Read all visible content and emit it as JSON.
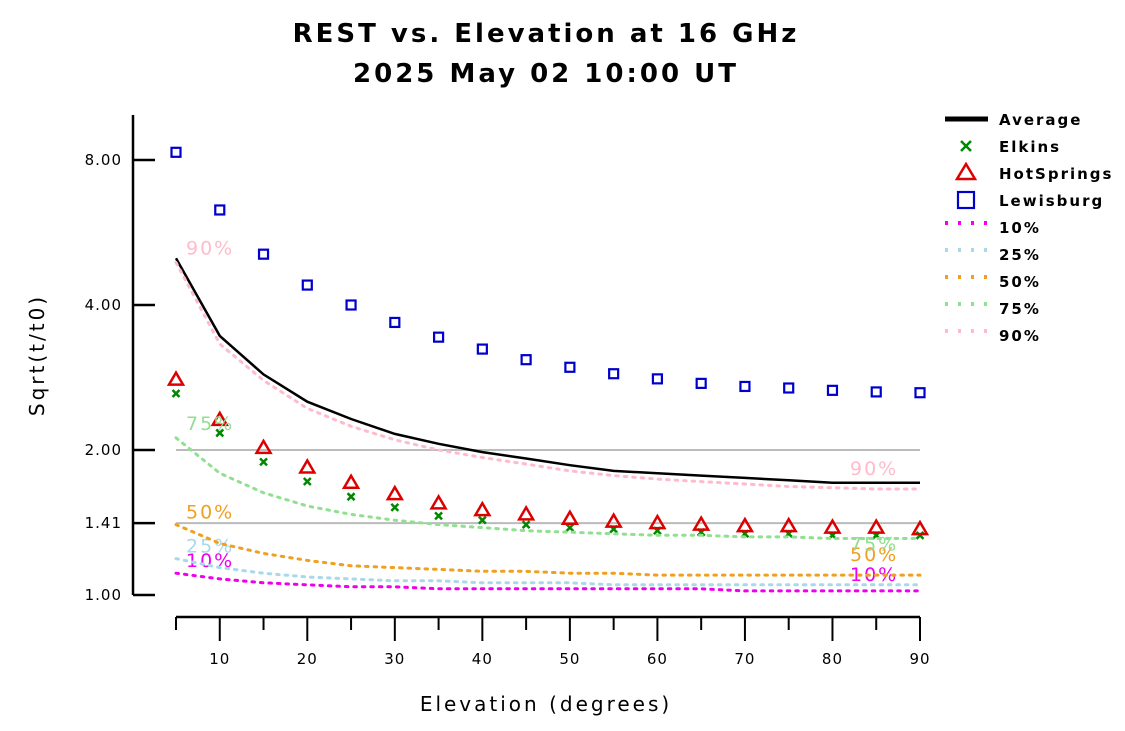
{
  "chart_data": {
    "type": "line",
    "title": "REST vs. Elevation at 16 GHz",
    "subtitle": "2025 May 02 10:00 UT",
    "xlabel": "Elevation (degrees)",
    "ylabel": "Sqrt(t/t0)",
    "xlim": [
      5,
      90
    ],
    "ylim": [
      1.0,
      9.0
    ],
    "y_scale": "log",
    "x_ticks": [
      10,
      20,
      30,
      40,
      50,
      60,
      70,
      80,
      90
    ],
    "y_ticks": [
      1.0,
      1.41,
      2.0,
      4.0,
      8.0
    ],
    "y_tick_labels": [
      "1.00",
      "1.41",
      "2.00",
      "4.00",
      "8.00"
    ],
    "reference_lines": [
      1.41,
      2.0
    ],
    "reference_line_color": "#bbbbbb",
    "x": [
      5,
      10,
      15,
      20,
      25,
      30,
      35,
      40,
      45,
      50,
      55,
      60,
      65,
      70,
      75,
      80,
      85,
      90
    ],
    "legend_position": "top-right, outside plot",
    "series": [
      {
        "name": "Average",
        "style": "line",
        "color": "#000000",
        "values": [
          5.0,
          3.45,
          2.87,
          2.52,
          2.32,
          2.16,
          2.06,
          1.98,
          1.92,
          1.86,
          1.81,
          1.79,
          1.77,
          1.75,
          1.73,
          1.71,
          1.71,
          1.71
        ]
      },
      {
        "name": "Elkins",
        "style": "x-marker",
        "color": "#008800",
        "values": [
          2.62,
          2.17,
          1.89,
          1.72,
          1.6,
          1.52,
          1.46,
          1.43,
          1.4,
          1.38,
          1.37,
          1.36,
          1.35,
          1.34,
          1.34,
          1.33,
          1.33,
          1.33
        ]
      },
      {
        "name": "HotSprings",
        "style": "triangle-marker",
        "color": "#dd0000",
        "values": [
          2.8,
          2.31,
          2.02,
          1.84,
          1.71,
          1.62,
          1.55,
          1.5,
          1.47,
          1.44,
          1.42,
          1.41,
          1.4,
          1.39,
          1.39,
          1.38,
          1.38,
          1.37
        ]
      },
      {
        "name": "Lewisburg",
        "style": "square-marker",
        "color": "#0000cc",
        "values": [
          8.3,
          6.3,
          5.1,
          4.4,
          4.0,
          3.68,
          3.43,
          3.24,
          3.08,
          2.97,
          2.88,
          2.81,
          2.75,
          2.71,
          2.69,
          2.66,
          2.64,
          2.63
        ]
      },
      {
        "name": "10%",
        "style": "dotted",
        "color": "#ee00ee",
        "label": "10%",
        "values": [
          1.11,
          1.08,
          1.06,
          1.05,
          1.04,
          1.04,
          1.03,
          1.03,
          1.03,
          1.03,
          1.03,
          1.03,
          1.03,
          1.02,
          1.02,
          1.02,
          1.02,
          1.02
        ]
      },
      {
        "name": "25%",
        "style": "dotted",
        "color": "#a8d8ea",
        "label": "25%",
        "values": [
          1.19,
          1.14,
          1.11,
          1.09,
          1.08,
          1.07,
          1.07,
          1.06,
          1.06,
          1.06,
          1.05,
          1.05,
          1.05,
          1.05,
          1.05,
          1.05,
          1.05,
          1.05
        ]
      },
      {
        "name": "50%",
        "style": "dotted",
        "color": "#f0a020",
        "label": "50%",
        "values": [
          1.4,
          1.28,
          1.22,
          1.18,
          1.15,
          1.14,
          1.13,
          1.12,
          1.12,
          1.11,
          1.11,
          1.1,
          1.1,
          1.1,
          1.1,
          1.1,
          1.1,
          1.1
        ]
      },
      {
        "name": "75%",
        "style": "dotted",
        "color": "#90e090",
        "label": "75%",
        "values": [
          2.12,
          1.79,
          1.63,
          1.53,
          1.47,
          1.43,
          1.4,
          1.38,
          1.36,
          1.35,
          1.34,
          1.33,
          1.33,
          1.32,
          1.32,
          1.31,
          1.31,
          1.31
        ]
      },
      {
        "name": "90%",
        "style": "dotted",
        "color": "#ffbbcc",
        "label": "90%",
        "values": [
          4.9,
          3.32,
          2.79,
          2.44,
          2.24,
          2.1,
          2.0,
          1.93,
          1.87,
          1.81,
          1.77,
          1.74,
          1.72,
          1.7,
          1.68,
          1.67,
          1.66,
          1.66
        ]
      }
    ]
  }
}
